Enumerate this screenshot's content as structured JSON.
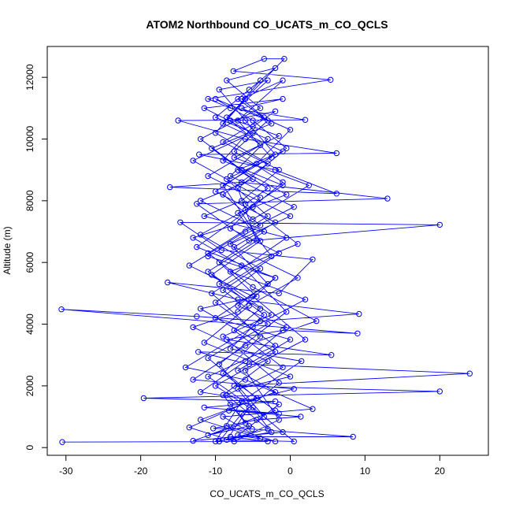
{
  "chart_data": {
    "type": "scatter",
    "title": "ATOM2 Northbound CO_UCATS_m_CO_QCLS",
    "xlabel": "CO_UCATS_m_CO_QCLS",
    "ylabel": "Altitude (m)",
    "xlim": [
      -32.5,
      26.5
    ],
    "ylim": [
      -250,
      13000
    ],
    "xticks": [
      -30,
      -20,
      -10,
      0,
      10,
      20
    ],
    "yticks": [
      0,
      2000,
      4000,
      6000,
      8000,
      10000,
      12000
    ],
    "grid": false,
    "connected": true,
    "point_style": "open-circle",
    "series_color": "#0000ff",
    "series": [
      {
        "points": [
          [
            -30.5,
            180
          ],
          [
            -3.0,
            200
          ],
          [
            -8.0,
            350
          ],
          [
            8.4,
            350
          ],
          [
            -5.1,
            600
          ],
          [
            -10.3,
            620
          ],
          [
            -4.5,
            900
          ],
          [
            1.4,
            1000
          ],
          [
            -8.2,
            1200
          ],
          [
            -1.5,
            1100
          ],
          [
            -11.5,
            1300
          ],
          [
            -2.0,
            1500
          ],
          [
            -19.6,
            1600
          ],
          [
            20.0,
            1820
          ],
          [
            -7.5,
            2000
          ],
          [
            24.0,
            2400
          ],
          [
            -5.5,
            2700
          ],
          [
            -12.3,
            3100
          ],
          [
            5.5,
            3000
          ],
          [
            -8.5,
            3500
          ],
          [
            -1.0,
            3800
          ],
          [
            9.0,
            3700
          ],
          [
            -30.6,
            4480
          ],
          [
            -12.5,
            4250
          ],
          [
            -4.0,
            4100
          ],
          [
            9.2,
            4330
          ],
          [
            -7.0,
            4800
          ],
          [
            -16.4,
            5350
          ],
          [
            -1.5,
            5000
          ],
          [
            3.0,
            6100
          ],
          [
            -9.2,
            6400
          ],
          [
            -14.7,
            7300
          ],
          [
            20.0,
            7220
          ],
          [
            -5.5,
            6700
          ],
          [
            -12.5,
            7900
          ],
          [
            13.0,
            8070
          ],
          [
            -6.5,
            8600
          ],
          [
            -16.1,
            8440
          ],
          [
            6.2,
            8230
          ],
          [
            -2.0,
            9000
          ],
          [
            -12.2,
            9500
          ],
          [
            6.2,
            9540
          ],
          [
            -6.0,
            10000
          ],
          [
            -15.0,
            10600
          ],
          [
            2.0,
            10620
          ],
          [
            -8.0,
            11000
          ],
          [
            -11.0,
            11300
          ],
          [
            5.4,
            11920
          ],
          [
            -7.6,
            12200
          ],
          [
            -3.5,
            12600
          ],
          [
            -0.8,
            12600
          ],
          [
            -6.0,
            11300
          ],
          [
            -10.0,
            10200
          ],
          [
            -3.0,
            9200
          ],
          [
            -9.0,
            8200
          ],
          [
            -4.0,
            7200
          ],
          [
            -11.0,
            6200
          ],
          [
            -2.0,
            5500
          ],
          [
            -7.0,
            4400
          ],
          [
            -13.0,
            3900
          ],
          [
            -3.0,
            2800
          ],
          [
            -9.0,
            1700
          ],
          [
            -6.0,
            800
          ],
          [
            -13.0,
            220
          ],
          [
            -1.0,
            500
          ],
          [
            -5.0,
            1300
          ],
          [
            -11.0,
            2300
          ],
          [
            -2.0,
            3300
          ],
          [
            -10.0,
            4700
          ],
          [
            -4.0,
            5800
          ],
          [
            -12.0,
            6900
          ],
          [
            -6.0,
            7700
          ],
          [
            -1.0,
            8500
          ],
          [
            -9.0,
            9300
          ],
          [
            -5.0,
            10400
          ],
          [
            -2.0,
            10900
          ],
          [
            -8.0,
            10600
          ],
          [
            -4.0,
            9800
          ],
          [
            -11.0,
            8800
          ],
          [
            0.0,
            7500
          ],
          [
            -8.0,
            6600
          ],
          [
            -3.0,
            5300
          ],
          [
            -10.0,
            4200
          ],
          [
            0.0,
            3500
          ],
          [
            -7.0,
            2500
          ],
          [
            -2.0,
            1800
          ],
          [
            -12.0,
            900
          ],
          [
            -4.0,
            300
          ],
          [
            -9.0,
            1000
          ],
          [
            3.0,
            1250
          ],
          [
            -6.0,
            2200
          ],
          [
            -14.0,
            2600
          ],
          [
            -5.0,
            3900
          ],
          [
            2.0,
            4800
          ],
          [
            -8.0,
            5700
          ],
          [
            1.0,
            6600
          ],
          [
            -6.0,
            7900
          ],
          [
            -3.0,
            8400
          ],
          [
            -7.0,
            9000
          ],
          [
            -1.0,
            9600
          ],
          [
            -9.0,
            10500
          ],
          [
            -4.0,
            11900
          ],
          [
            -7.0,
            11300
          ],
          [
            -2.5,
            10500
          ],
          [
            -10.5,
            9700
          ],
          [
            -5.0,
            8700
          ],
          [
            -12.0,
            8000
          ],
          [
            -3.5,
            7000
          ],
          [
            -9.5,
            6000
          ],
          [
            -4.5,
            4900
          ],
          [
            -12.0,
            4500
          ],
          [
            -2.0,
            3100
          ],
          [
            -10.0,
            2000
          ],
          [
            -5.5,
            1300
          ],
          [
            -8.5,
            250
          ],
          [
            0.5,
            200
          ],
          [
            -3.5,
            1000
          ],
          [
            -9.5,
            2700
          ],
          [
            -0.5,
            4400
          ],
          [
            -6.5,
            5900
          ],
          [
            -13.0,
            6800
          ],
          [
            -5.0,
            7400
          ],
          [
            2.5,
            8500
          ],
          [
            -7.5,
            9400
          ],
          [
            -1.5,
            10100
          ],
          [
            -8.5,
            10700
          ],
          [
            -3.0,
            11900
          ],
          [
            -9.5,
            11600
          ],
          [
            -6.0,
            10600
          ],
          [
            -2.0,
            9500
          ],
          [
            -9.0,
            8500
          ],
          [
            -4.0,
            6700
          ],
          [
            -10.5,
            5600
          ],
          [
            -3.5,
            4300
          ],
          [
            -8.0,
            3200
          ],
          [
            1.5,
            2800
          ],
          [
            -6.5,
            1500
          ],
          [
            -10.0,
            200
          ],
          [
            -2.5,
            500
          ],
          [
            -7.0,
            1900
          ],
          [
            0.0,
            2300
          ],
          [
            -11.5,
            3400
          ],
          [
            -5.5,
            4600
          ],
          [
            1.0,
            5500
          ],
          [
            -7.5,
            6500
          ],
          [
            -2.0,
            7300
          ],
          [
            -10.0,
            8300
          ],
          [
            -4.5,
            9200
          ],
          [
            0.0,
            10300
          ],
          [
            -6.5,
            11000
          ],
          [
            -1.0,
            11300
          ],
          [
            -11.5,
            11000
          ],
          [
            -5.0,
            10200
          ],
          [
            -13.0,
            9300
          ],
          [
            -4.0,
            8100
          ],
          [
            -8.0,
            7100
          ],
          [
            -1.5,
            6300
          ],
          [
            -9.0,
            5100
          ],
          [
            -3.0,
            4000
          ],
          [
            -11.0,
            2900
          ],
          [
            -4.5,
            1600
          ],
          [
            -13.5,
            650
          ],
          [
            -7.5,
            200
          ],
          [
            -1.5,
            900
          ],
          [
            -6.0,
            2500
          ],
          [
            2.0,
            3500
          ],
          [
            -5.0,
            4900
          ],
          [
            -13.5,
            5900
          ],
          [
            -6.0,
            7000
          ],
          [
            0.5,
            7800
          ],
          [
            -8.0,
            8800
          ],
          [
            -3.0,
            10000
          ],
          [
            -10.0,
            10700
          ],
          [
            -5.5,
            11600
          ],
          [
            -2.0,
            12300
          ],
          [
            -8.5,
            11900
          ],
          [
            -4.0,
            11000
          ],
          [
            -12.0,
            10000
          ],
          [
            -6.5,
            9000
          ],
          [
            -0.5,
            8200
          ],
          [
            -7.0,
            7600
          ],
          [
            -2.5,
            6200
          ],
          [
            -10.5,
            5000
          ],
          [
            -4.0,
            3600
          ],
          [
            -9.0,
            2400
          ],
          [
            -2.0,
            1200
          ],
          [
            -11.0,
            400
          ],
          [
            -5.5,
            700
          ],
          [
            -8.0,
            1400
          ],
          [
            0.5,
            1900
          ],
          [
            -13.0,
            2200
          ],
          [
            -6.0,
            3300
          ],
          [
            3.5,
            4100
          ],
          [
            -5.0,
            5200
          ],
          [
            -11.0,
            6300
          ],
          [
            -3.0,
            7500
          ],
          [
            -8.5,
            8700
          ],
          [
            -2.5,
            9400
          ],
          [
            -7.0,
            10600
          ],
          [
            -1.0,
            11900
          ],
          [
            -6.5,
            11300
          ],
          [
            -3.5,
            10700
          ],
          [
            -9.0,
            9900
          ],
          [
            -1.5,
            9000
          ],
          [
            -6.5,
            8000
          ],
          [
            -11.5,
            7500
          ],
          [
            -0.5,
            6800
          ],
          [
            -9.5,
            5300
          ],
          [
            -4.0,
            4500
          ],
          [
            -7.5,
            3800
          ],
          [
            -1.0,
            2600
          ],
          [
            -8.5,
            1700
          ],
          [
            -3.0,
            600
          ],
          [
            -9.5,
            200
          ],
          [
            -6.5,
            1100
          ],
          [
            -1.5,
            2100
          ],
          [
            -9.0,
            3600
          ],
          [
            -2.5,
            4300
          ],
          [
            -11.0,
            5700
          ],
          [
            -4.5,
            6700
          ],
          [
            -7.0,
            8400
          ],
          [
            -0.5,
            9700
          ],
          [
            -5.0,
            10600
          ],
          [
            -10.0,
            11300
          ],
          [
            -3.0,
            10600
          ],
          [
            -7.5,
            9600
          ],
          [
            -1.0,
            8600
          ],
          [
            -5.0,
            7800
          ],
          [
            -12.5,
            6500
          ],
          [
            -2.0,
            5500
          ],
          [
            -7.0,
            4600
          ],
          [
            -0.5,
            3900
          ],
          [
            -6.0,
            2800
          ],
          [
            -12.0,
            1800
          ],
          [
            -1.5,
            1400
          ],
          [
            -7.0,
            400
          ],
          [
            -2.0,
            200
          ],
          [
            -8.5,
            700
          ]
        ]
      }
    ]
  }
}
